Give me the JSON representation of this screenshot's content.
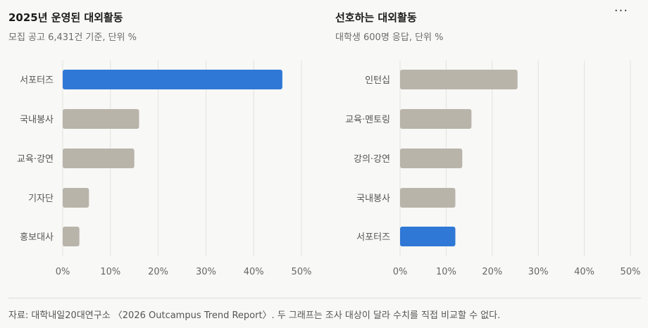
{
  "charts": {
    "more_icon": "more-horizontal-icon",
    "more_label": "···"
  },
  "footnote": "자료: 대학내일20대연구소 〈2026 Outcampus Trend Report〉. 두 그래프는 조사 대상이 달라 수치를 직접 비교할 수 없다.",
  "colors": {
    "highlight": "#2f78d6",
    "default": "#b8b4aa",
    "grid": "#e2e2de"
  },
  "chart_data": [
    {
      "type": "bar",
      "orientation": "horizontal",
      "title": "2025년 운영된 대외활동",
      "subtitle": "모집 공고 6,431건 기준, 단위 %",
      "categories": [
        "서포터즈",
        "국내봉사",
        "교육·강연",
        "기자단",
        "홍보대사"
      ],
      "values": [
        46,
        16,
        15,
        5.5,
        3.5
      ],
      "highlight_index": 0,
      "xlim": [
        0,
        50
      ],
      "xticks": [
        "0%",
        "10%",
        "20%",
        "30%",
        "40%",
        "50%"
      ],
      "grid": true
    },
    {
      "type": "bar",
      "orientation": "horizontal",
      "title": "선호하는 대외활동",
      "subtitle": "대학생 600명 응답, 단위 %",
      "categories": [
        "인턴십",
        "교육·멘토링",
        "강의·강연",
        "국내봉사",
        "서포터즈"
      ],
      "values": [
        25.5,
        15.5,
        13.5,
        12,
        12
      ],
      "highlight_index": 4,
      "xlim": [
        0,
        50
      ],
      "xticks": [
        "0%",
        "10%",
        "20%",
        "30%",
        "40%",
        "50%"
      ],
      "grid": true
    }
  ]
}
